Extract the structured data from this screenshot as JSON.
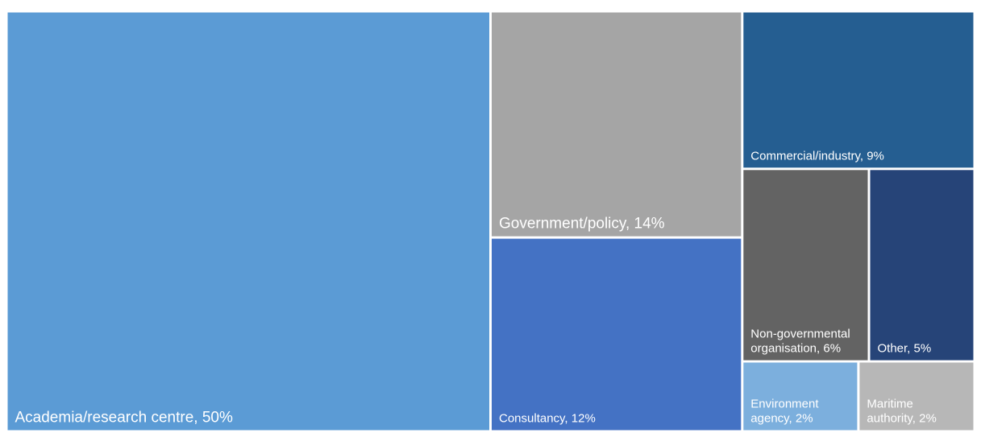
{
  "chart_data": {
    "type": "treemap",
    "title": "",
    "legend": "none",
    "grid": false,
    "items": [
      {
        "label": "Academia/research centre, 50%",
        "name": "Academia/research centre",
        "value": 50,
        "color": "#5b9bd5"
      },
      {
        "label": "Government/policy, 14%",
        "name": "Government/policy",
        "value": 14,
        "color": "#a5a5a5"
      },
      {
        "label": "Consultancy, 12%",
        "name": "Consultancy",
        "value": 12,
        "color": "#4472c4"
      },
      {
        "label": "Commercial/industry, 9%",
        "name": "Commercial/industry",
        "value": 9,
        "color": "#255e91"
      },
      {
        "label": "Non-governmental\norganisation, 6%",
        "name": "Non-governmental organisation",
        "value": 6,
        "color": "#636363"
      },
      {
        "label": "Other, 5%",
        "name": "Other",
        "value": 5,
        "color": "#264478"
      },
      {
        "label": "Environment\nagency, 2%",
        "name": "Environment agency",
        "value": 2,
        "color": "#7cafdd"
      },
      {
        "label": "Maritime\nauthority, 2%",
        "name": "Maritime authority",
        "value": 2,
        "color": "#b7b7b7"
      }
    ]
  }
}
